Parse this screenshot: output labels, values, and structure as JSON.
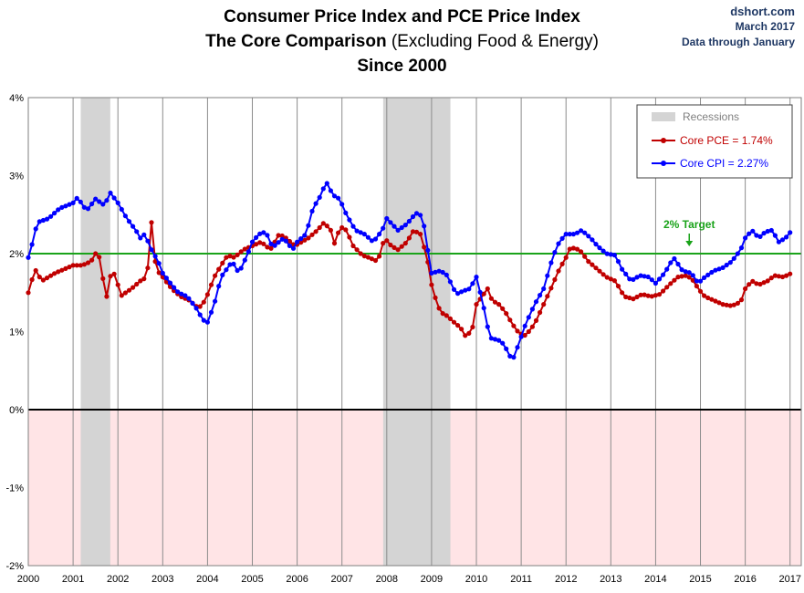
{
  "header": {
    "title_line1": "Consumer Price Index and PCE Price Index",
    "title_line2_bold": "The Core Comparison",
    "title_line2_rest": " (Excluding Food & Energy)",
    "title_line3": "Since 2000",
    "source_site": "dshort.com",
    "source_date": "March 2017",
    "source_note": "Data through January"
  },
  "chart_data": {
    "type": "line",
    "title": "Consumer Price Index and PCE Price Index — The Core Comparison (Excluding Food & Energy) — Since 2000",
    "xlabel": "",
    "ylabel": "",
    "xlim": [
      2000.0,
      2017.25
    ],
    "ylim": [
      -2,
      4
    ],
    "y_ticks": [
      4,
      3,
      2,
      1,
      0,
      -1,
      -2
    ],
    "y_tick_labels": [
      "4%",
      "3%",
      "2%",
      "1%",
      "0%",
      "-1%",
      "-2%"
    ],
    "x_ticks": [
      2000,
      2001,
      2002,
      2003,
      2004,
      2005,
      2006,
      2007,
      2008,
      2009,
      2010,
      2011,
      2012,
      2013,
      2014,
      2015,
      2016,
      2017
    ],
    "x_tick_labels": [
      "2000",
      "2001",
      "2002",
      "2003",
      "2004",
      "2005",
      "2006",
      "2007",
      "2008",
      "2009",
      "2010",
      "2011",
      "2012",
      "2013",
      "2014",
      "2015",
      "2016",
      "2017"
    ],
    "grid": "vertical lines at each year",
    "legend_position": "top-right",
    "legend": {
      "recessions": "Recessions",
      "pce": "Core PCE = 1.74%",
      "cpi": "Core CPI = 2.27%"
    },
    "target_line": {
      "value": 2.0,
      "label": "2% Target",
      "label_x": 2014.75,
      "color": "#1aa31a"
    },
    "zero_line": {
      "value": 0,
      "color": "#000000"
    },
    "negative_shading_color": "#ffe4e6",
    "recessions": [
      {
        "start": 2001.17,
        "end": 2001.83
      },
      {
        "start": 2007.92,
        "end": 2009.42
      }
    ],
    "series": [
      {
        "name": "Core CPI",
        "color": "#0000ff",
        "anchors": [
          [
            2000.0,
            1.95
          ],
          [
            2000.1,
            2.15
          ],
          [
            2000.2,
            2.4
          ],
          [
            2000.45,
            2.45
          ],
          [
            2000.7,
            2.58
          ],
          [
            2001.0,
            2.65
          ],
          [
            2001.1,
            2.72
          ],
          [
            2001.3,
            2.55
          ],
          [
            2001.5,
            2.7
          ],
          [
            2001.7,
            2.62
          ],
          [
            2001.83,
            2.78
          ],
          [
            2002.0,
            2.65
          ],
          [
            2002.2,
            2.45
          ],
          [
            2002.4,
            2.3
          ],
          [
            2002.5,
            2.2
          ],
          [
            2002.6,
            2.25
          ],
          [
            2002.75,
            2.05
          ],
          [
            2002.9,
            1.9
          ],
          [
            2003.0,
            1.75
          ],
          [
            2003.2,
            1.6
          ],
          [
            2003.35,
            1.5
          ],
          [
            2003.55,
            1.45
          ],
          [
            2003.75,
            1.3
          ],
          [
            2003.9,
            1.15
          ],
          [
            2004.0,
            1.12
          ],
          [
            2004.15,
            1.35
          ],
          [
            2004.3,
            1.7
          ],
          [
            2004.55,
            1.9
          ],
          [
            2004.7,
            1.75
          ],
          [
            2004.9,
            2.0
          ],
          [
            2005.0,
            2.15
          ],
          [
            2005.15,
            2.25
          ],
          [
            2005.3,
            2.28
          ],
          [
            2005.45,
            2.08
          ],
          [
            2005.7,
            2.2
          ],
          [
            2005.9,
            2.05
          ],
          [
            2006.0,
            2.15
          ],
          [
            2006.2,
            2.25
          ],
          [
            2006.35,
            2.58
          ],
          [
            2006.5,
            2.72
          ],
          [
            2006.65,
            2.92
          ],
          [
            2006.8,
            2.75
          ],
          [
            2006.95,
            2.7
          ],
          [
            2007.1,
            2.5
          ],
          [
            2007.3,
            2.3
          ],
          [
            2007.5,
            2.25
          ],
          [
            2007.7,
            2.15
          ],
          [
            2007.9,
            2.3
          ],
          [
            2008.0,
            2.45
          ],
          [
            2008.25,
            2.3
          ],
          [
            2008.45,
            2.38
          ],
          [
            2008.65,
            2.52
          ],
          [
            2008.8,
            2.48
          ],
          [
            2008.9,
            2.1
          ],
          [
            2009.0,
            1.75
          ],
          [
            2009.2,
            1.78
          ],
          [
            2009.35,
            1.72
          ],
          [
            2009.55,
            1.48
          ],
          [
            2009.7,
            1.52
          ],
          [
            2009.85,
            1.55
          ],
          [
            2010.0,
            1.7
          ],
          [
            2010.15,
            1.35
          ],
          [
            2010.3,
            0.92
          ],
          [
            2010.55,
            0.88
          ],
          [
            2010.7,
            0.75
          ],
          [
            2010.8,
            0.62
          ],
          [
            2010.95,
            0.85
          ],
          [
            2011.1,
            1.1
          ],
          [
            2011.3,
            1.35
          ],
          [
            2011.5,
            1.55
          ],
          [
            2011.7,
            1.95
          ],
          [
            2011.85,
            2.15
          ],
          [
            2012.0,
            2.25
          ],
          [
            2012.2,
            2.25
          ],
          [
            2012.35,
            2.3
          ],
          [
            2012.55,
            2.2
          ],
          [
            2012.7,
            2.1
          ],
          [
            2012.9,
            2.0
          ],
          [
            2013.1,
            1.98
          ],
          [
            2013.25,
            1.8
          ],
          [
            2013.45,
            1.65
          ],
          [
            2013.65,
            1.72
          ],
          [
            2013.85,
            1.7
          ],
          [
            2014.0,
            1.62
          ],
          [
            2014.2,
            1.75
          ],
          [
            2014.4,
            1.95
          ],
          [
            2014.6,
            1.78
          ],
          [
            2014.8,
            1.75
          ],
          [
            2014.95,
            1.62
          ],
          [
            2015.1,
            1.7
          ],
          [
            2015.3,
            1.78
          ],
          [
            2015.5,
            1.82
          ],
          [
            2015.7,
            1.9
          ],
          [
            2015.9,
            2.05
          ],
          [
            2016.0,
            2.2
          ],
          [
            2016.15,
            2.3
          ],
          [
            2016.3,
            2.2
          ],
          [
            2016.45,
            2.28
          ],
          [
            2016.6,
            2.3
          ],
          [
            2016.75,
            2.15
          ],
          [
            2016.9,
            2.2
          ],
          [
            2017.0,
            2.27
          ]
        ]
      },
      {
        "name": "Core PCE",
        "color": "#c00000",
        "anchors": [
          [
            2000.0,
            1.5
          ],
          [
            2000.15,
            1.8
          ],
          [
            2000.3,
            1.65
          ],
          [
            2000.6,
            1.75
          ],
          [
            2000.8,
            1.8
          ],
          [
            2001.0,
            1.85
          ],
          [
            2001.2,
            1.85
          ],
          [
            2001.4,
            1.9
          ],
          [
            2001.5,
            2.0
          ],
          [
            2001.65,
            1.92
          ],
          [
            2001.7,
            1.2
          ],
          [
            2001.8,
            1.7
          ],
          [
            2001.95,
            1.75
          ],
          [
            2002.05,
            1.45
          ],
          [
            2002.3,
            1.55
          ],
          [
            2002.5,
            1.65
          ],
          [
            2002.65,
            1.7
          ],
          [
            2002.75,
            2.4
          ],
          [
            2002.85,
            1.8
          ],
          [
            2003.0,
            1.7
          ],
          [
            2003.2,
            1.55
          ],
          [
            2003.4,
            1.45
          ],
          [
            2003.6,
            1.4
          ],
          [
            2003.8,
            1.3
          ],
          [
            2003.95,
            1.4
          ],
          [
            2004.15,
            1.7
          ],
          [
            2004.3,
            1.85
          ],
          [
            2004.45,
            1.98
          ],
          [
            2004.6,
            1.95
          ],
          [
            2004.8,
            2.05
          ],
          [
            2005.0,
            2.1
          ],
          [
            2005.2,
            2.15
          ],
          [
            2005.4,
            2.05
          ],
          [
            2005.6,
            2.25
          ],
          [
            2005.75,
            2.2
          ],
          [
            2005.95,
            2.1
          ],
          [
            2006.1,
            2.15
          ],
          [
            2006.25,
            2.2
          ],
          [
            2006.45,
            2.3
          ],
          [
            2006.6,
            2.4
          ],
          [
            2006.75,
            2.3
          ],
          [
            2006.85,
            2.1
          ],
          [
            2006.95,
            2.35
          ],
          [
            2007.1,
            2.3
          ],
          [
            2007.25,
            2.1
          ],
          [
            2007.45,
            1.98
          ],
          [
            2007.6,
            1.95
          ],
          [
            2007.8,
            1.9
          ],
          [
            2007.95,
            2.2
          ],
          [
            2008.1,
            2.1
          ],
          [
            2008.25,
            2.05
          ],
          [
            2008.45,
            2.15
          ],
          [
            2008.6,
            2.3
          ],
          [
            2008.75,
            2.25
          ],
          [
            2008.9,
            1.95
          ],
          [
            2009.0,
            1.6
          ],
          [
            2009.1,
            1.4
          ],
          [
            2009.2,
            1.25
          ],
          [
            2009.35,
            1.2
          ],
          [
            2009.5,
            1.12
          ],
          [
            2009.65,
            1.05
          ],
          [
            2009.75,
            0.95
          ],
          [
            2009.9,
            1.0
          ],
          [
            2010.0,
            1.35
          ],
          [
            2010.25,
            1.55
          ],
          [
            2010.35,
            1.4
          ],
          [
            2010.5,
            1.35
          ],
          [
            2010.65,
            1.25
          ],
          [
            2010.8,
            1.1
          ],
          [
            2010.95,
            0.98
          ],
          [
            2011.1,
            0.95
          ],
          [
            2011.3,
            1.1
          ],
          [
            2011.5,
            1.35
          ],
          [
            2011.7,
            1.6
          ],
          [
            2011.85,
            1.8
          ],
          [
            2012.0,
            1.95
          ],
          [
            2012.1,
            2.08
          ],
          [
            2012.3,
            2.05
          ],
          [
            2012.5,
            1.9
          ],
          [
            2012.7,
            1.8
          ],
          [
            2012.9,
            1.7
          ],
          [
            2013.1,
            1.65
          ],
          [
            2013.3,
            1.45
          ],
          [
            2013.5,
            1.42
          ],
          [
            2013.7,
            1.48
          ],
          [
            2013.9,
            1.45
          ],
          [
            2014.1,
            1.48
          ],
          [
            2014.3,
            1.6
          ],
          [
            2014.5,
            1.7
          ],
          [
            2014.7,
            1.72
          ],
          [
            2014.85,
            1.65
          ],
          [
            2014.95,
            1.55
          ],
          [
            2015.1,
            1.45
          ],
          [
            2015.3,
            1.4
          ],
          [
            2015.5,
            1.35
          ],
          [
            2015.7,
            1.33
          ],
          [
            2015.9,
            1.38
          ],
          [
            2016.0,
            1.55
          ],
          [
            2016.15,
            1.65
          ],
          [
            2016.3,
            1.6
          ],
          [
            2016.5,
            1.65
          ],
          [
            2016.65,
            1.72
          ],
          [
            2016.85,
            1.7
          ],
          [
            2017.0,
            1.74
          ]
        ]
      }
    ]
  }
}
